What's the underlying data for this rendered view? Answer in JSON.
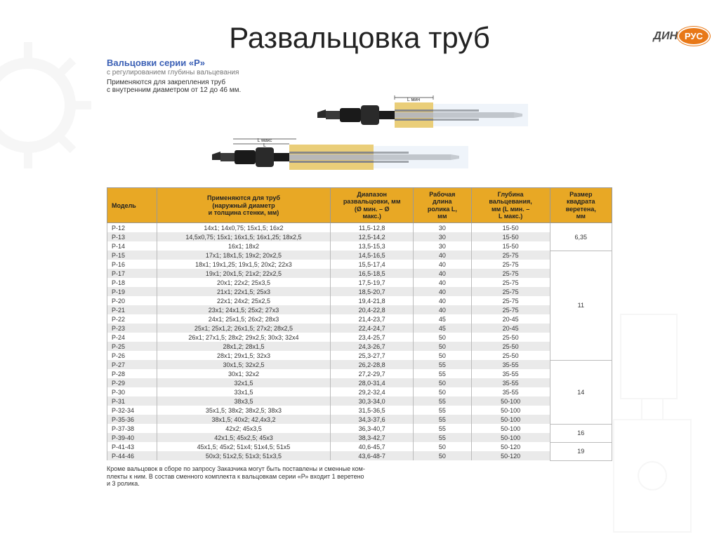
{
  "logo": {
    "left": "ДИН",
    "right": "РУС"
  },
  "title": "Развальцовка труб",
  "subtitle": "Вальцовки серии «Р»",
  "subtext1": "с регулированием глубины вальцевания",
  "subtext2": "Применяются для закрепления труб\nс внутренним диаметром от 12 до 46 мм.",
  "diagram": {
    "label_top": "L мин",
    "label_left1": "L макс",
    "label_left2": "L"
  },
  "table": {
    "headers": [
      "Модель",
      "Применяются для труб\n(наружный диаметр\nи толщина стенки, мм)",
      "Диапазон\nразвальцовки, мм\n(Ø мин. – Ø\nмакс.)",
      "Рабочая\nдлина\nролика L,\nмм",
      "Глубина\nвальцевания,\nмм (L мин. –\nL макс.)",
      "Размер\nквадрата\nверетена,\nмм"
    ],
    "col_widths": [
      "60px",
      "210px",
      "100px",
      "70px",
      "95px",
      "75px"
    ],
    "rows": [
      [
        "Р-12",
        "14x1; 14x0,75; 15x1,5; 16x2",
        "11,5-12,8",
        "30",
        "15-50"
      ],
      [
        "Р-13",
        "14,5x0,75; 15x1; 16x1,5; 16x1,25; 18x2,5",
        "12,5-14,2",
        "30",
        "15-50"
      ],
      [
        "Р-14",
        "16x1; 18x2",
        "13,5-15,3",
        "30",
        "15-50"
      ],
      [
        "Р-15",
        "17x1; 18x1,5; 19x2; 20x2,5",
        "14,5-16,5",
        "40",
        "25-75"
      ],
      [
        "Р-16",
        "18x1; 19x1,25; 19x1,5; 20x2; 22x3",
        "15,5-17,4",
        "40",
        "25-75"
      ],
      [
        "Р-17",
        "19x1; 20x1,5; 21x2; 22x2,5",
        "16,5-18,5",
        "40",
        "25-75"
      ],
      [
        "Р-18",
        "20x1; 22x2; 25x3,5",
        "17,5-19,7",
        "40",
        "25-75"
      ],
      [
        "Р-19",
        "21x1; 22x1,5; 25x3",
        "18,5-20,7",
        "40",
        "25-75"
      ],
      [
        "Р-20",
        "22x1; 24x2; 25x2,5",
        "19,4-21,8",
        "40",
        "25-75"
      ],
      [
        "Р-21",
        "23x1; 24x1,5; 25x2; 27x3",
        "20,4-22,8",
        "40",
        "25-75"
      ],
      [
        "Р-22",
        "24x1; 25x1,5; 26x2; 28x3",
        "21,4-23,7",
        "45",
        "20-45"
      ],
      [
        "Р-23",
        "25x1; 25x1,2; 26x1,5; 27x2; 28x2,5",
        "22,4-24,7",
        "45",
        "20-45"
      ],
      [
        "Р-24",
        "26x1; 27x1,5; 28x2; 29x2,5; 30x3; 32x4",
        "23,4-25,7",
        "50",
        "25-50"
      ],
      [
        "Р-25",
        "28x1,2; 28x1,5",
        "24,3-26,7",
        "50",
        "25-50"
      ],
      [
        "Р-26",
        "28x1; 29x1,5; 32x3",
        "25,3-27,7",
        "50",
        "25-50"
      ],
      [
        "Р-27",
        "30x1,5; 32x2,5",
        "26,2-28,8",
        "55",
        "35-55"
      ],
      [
        "Р-28",
        "30x1; 32x2",
        "27,2-29,7",
        "55",
        "35-55"
      ],
      [
        "Р-29",
        "32x1,5",
        "28,0-31,4",
        "50",
        "35-55"
      ],
      [
        "Р-30",
        "33x1,5",
        "29,2-32,4",
        "50",
        "35-55"
      ],
      [
        "Р-31",
        "38x3,5",
        "30,3-34,0",
        "55",
        "50-100"
      ],
      [
        "Р-32-34",
        "35x1,5; 38x2; 38x2,5; 38x3",
        "31,5-36,5",
        "55",
        "50-100"
      ],
      [
        "Р-35-36",
        "38x1,5; 40x2; 42,4x3,2",
        "34,3-37,6",
        "55",
        "50-100"
      ],
      [
        "Р-37-38",
        "42x2; 45x3,5",
        "36,3-40,7",
        "55",
        "50-100"
      ],
      [
        "Р-39-40",
        "42x1,5; 45x2,5; 45x3",
        "38,3-42,7",
        "55",
        "50-100"
      ],
      [
        "Р-41-43",
        "45x1,5; 45x2; 51x4; 51x4,5; 51x5",
        "40,6-45,7",
        "50",
        "50-120"
      ],
      [
        "Р-44-46",
        "50x3; 51x2,5; 51x3; 51x3,5",
        "43,6-48-7",
        "50",
        "50-120"
      ]
    ],
    "merges": [
      {
        "start": 0,
        "span": 3,
        "value": "6,35"
      },
      {
        "start": 3,
        "span": 12,
        "value": "11"
      },
      {
        "start": 15,
        "span": 7,
        "value": "14"
      },
      {
        "start": 22,
        "span": 2,
        "value": "16"
      },
      {
        "start": 24,
        "span": 2,
        "value": "19"
      }
    ]
  },
  "footnote": "Кроме вальцовок в сборе по запросу Заказчика могут быть поставлены и сменные ком-\nплекты к ним. В состав сменного комплекта к вальцовкам серии «Р» входит 1 веретено\nи 3 ролика.",
  "colors": {
    "header_bg": "#e8a825",
    "accent_blue": "#3a5fb5",
    "orange": "#e87817",
    "row_alt": "#eaeaea",
    "border": "#bbbbbb"
  }
}
